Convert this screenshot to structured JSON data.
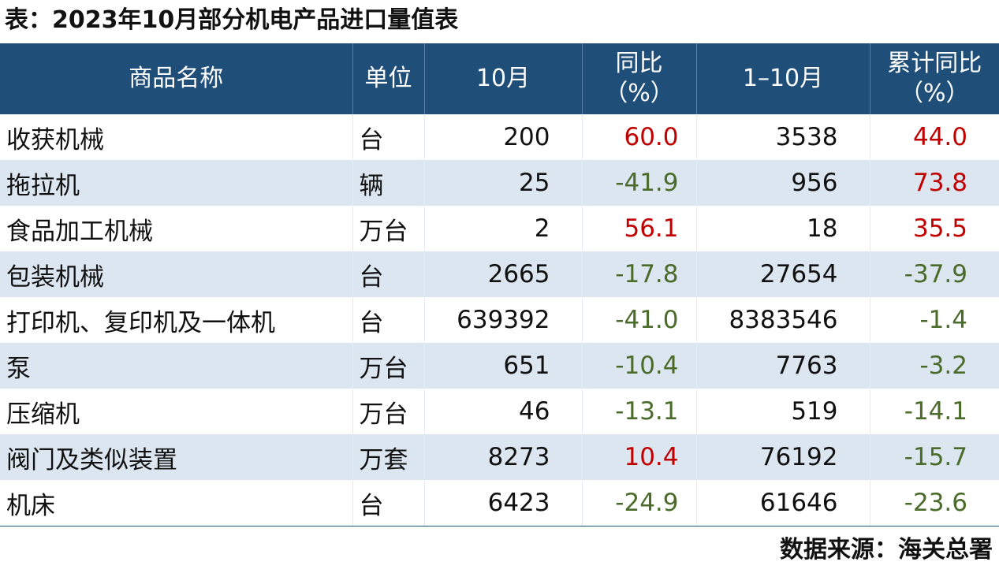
{
  "title": "表：2023年10月部分机电产品进口量值表",
  "table": {
    "header": [
      [
        "商品名称"
      ],
      [
        "单位"
      ],
      [
        "10月"
      ],
      [
        "同比",
        "（%）"
      ],
      [
        "1–10月"
      ],
      [
        "累计同比",
        "（%）"
      ]
    ],
    "rows": [
      [
        "收获机械",
        "台",
        "200",
        "60.0",
        "3538",
        "44.0"
      ],
      [
        "拖拉机",
        "辆",
        "25",
        "-41.9",
        "956",
        "73.8"
      ],
      [
        "食品加工机械",
        "万台",
        "2",
        "56.1",
        "18",
        "35.5"
      ],
      [
        "包装机械",
        "台",
        "2665",
        "-17.8",
        "27654",
        "-37.9"
      ],
      [
        "打印机、复印机及一体机",
        "台",
        "639392",
        "-41.0",
        "8383546",
        "-1.4"
      ],
      [
        "泵",
        "万台",
        "651",
        "-10.4",
        "7763",
        "-3.2"
      ],
      [
        "压缩机",
        "万台",
        "46",
        "-13.1",
        "519",
        "-14.1"
      ],
      [
        "阀门及类似装置",
        "万套",
        "8273",
        "10.4",
        "76192",
        "-15.7"
      ],
      [
        "机床",
        "台",
        "6423",
        "-24.9",
        "61646",
        "-23.6"
      ]
    ]
  },
  "source": "数据来源：海关总署"
}
